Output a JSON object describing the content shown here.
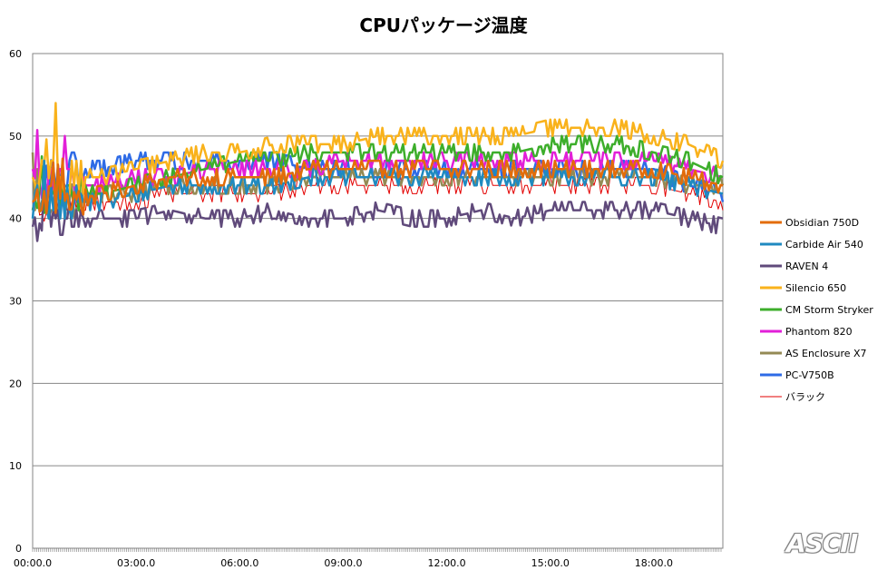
{
  "chart_data": {
    "type": "line",
    "title": "CPUパッケージ温度",
    "xlabel": "",
    "ylabel": "",
    "ylim": [
      0,
      60
    ],
    "yticks": [
      0,
      10,
      20,
      30,
      40,
      50,
      60
    ],
    "xlim_seconds": [
      0,
      1200
    ],
    "xticks": [
      "00:00.0",
      "03:00.0",
      "06:00.0",
      "09:00.0",
      "12:00.0",
      "15:00.0",
      "18:00.0"
    ],
    "grid": "horizontal",
    "legend_position": "right",
    "series": [
      {
        "name": "Obsidian 750D",
        "color": "#e36c09",
        "time_seconds": [
          0,
          30,
          60,
          120,
          180,
          240,
          300,
          360,
          420,
          480,
          540,
          600,
          660,
          720,
          780,
          840,
          900,
          960,
          1020,
          1080,
          1140,
          1200
        ],
        "values": [
          41,
          43,
          42,
          43,
          44,
          45,
          45,
          45,
          45,
          46,
          46,
          46,
          46,
          46,
          46,
          46,
          46,
          46,
          46,
          46,
          45,
          44
        ]
      },
      {
        "name": "Carbide Air 540",
        "color": "#1f8ac0",
        "time_seconds": [
          0,
          30,
          60,
          120,
          180,
          240,
          300,
          360,
          420,
          480,
          540,
          600,
          660,
          720,
          780,
          840,
          900,
          960,
          1020,
          1080,
          1140,
          1200
        ],
        "values": [
          42,
          42,
          42,
          42,
          43,
          44,
          44,
          44,
          44,
          45,
          45,
          45,
          45,
          45,
          45,
          45,
          45,
          45,
          45,
          45,
          44,
          43
        ]
      },
      {
        "name": "RAVEN 4",
        "color": "#604a7b",
        "time_seconds": [
          0,
          30,
          60,
          120,
          180,
          240,
          300,
          360,
          420,
          480,
          540,
          600,
          660,
          720,
          780,
          840,
          900,
          960,
          1020,
          1080,
          1140,
          1200
        ],
        "values": [
          39,
          40,
          40,
          40,
          40,
          41,
          40,
          40,
          41,
          40,
          40,
          41,
          40,
          40,
          41,
          40,
          41,
          41,
          41,
          41,
          40,
          39
        ]
      },
      {
        "name": "Silencio 650",
        "color": "#f9b21b",
        "time_seconds": [
          0,
          30,
          60,
          120,
          180,
          240,
          300,
          360,
          420,
          480,
          540,
          600,
          660,
          720,
          780,
          840,
          900,
          960,
          1020,
          1080,
          1140,
          1200
        ],
        "values": [
          43,
          45,
          45,
          45,
          46,
          47,
          48,
          48,
          49,
          49,
          49,
          50,
          50,
          50,
          50,
          50,
          51,
          51,
          51,
          50,
          49,
          47
        ]
      },
      {
        "name": "CM Storm Stryker",
        "color": "#3dae2b",
        "time_seconds": [
          0,
          30,
          60,
          120,
          180,
          240,
          300,
          360,
          420,
          480,
          540,
          600,
          660,
          720,
          780,
          840,
          900,
          960,
          1020,
          1080,
          1140,
          1200
        ],
        "values": [
          42,
          43,
          43,
          43,
          44,
          45,
          46,
          47,
          47,
          48,
          48,
          48,
          48,
          48,
          48,
          48,
          49,
          49,
          49,
          48,
          47,
          45
        ]
      },
      {
        "name": "Phantom 820",
        "color": "#e21fd8",
        "time_seconds": [
          0,
          30,
          60,
          120,
          180,
          240,
          300,
          360,
          420,
          480,
          540,
          600,
          660,
          720,
          780,
          840,
          900,
          960,
          1020,
          1080,
          1140,
          1200
        ],
        "values": [
          45,
          44,
          44,
          44,
          45,
          45,
          46,
          46,
          46,
          46,
          47,
          47,
          47,
          47,
          47,
          47,
          47,
          47,
          47,
          47,
          46,
          45
        ]
      },
      {
        "name": "AS Enclosure X7",
        "color": "#948a54",
        "time_seconds": [
          0,
          30,
          60,
          120,
          180,
          240,
          300,
          360,
          420,
          480,
          540,
          600,
          660,
          720,
          780,
          840,
          900,
          960,
          1020,
          1080,
          1140,
          1200
        ],
        "values": [
          42,
          42,
          42,
          43,
          43,
          44,
          44,
          44,
          44,
          45,
          45,
          45,
          45,
          45,
          45,
          45,
          45,
          45,
          45,
          45,
          44,
          44
        ]
      },
      {
        "name": "PC-V750B",
        "color": "#2e6be6",
        "time_seconds": [
          0,
          30,
          60,
          120,
          180,
          240,
          300,
          360,
          420,
          480,
          540,
          600,
          660,
          720,
          780,
          840,
          900,
          960,
          1020,
          1080,
          1140,
          1200
        ],
        "values": [
          42,
          45,
          46,
          46,
          47,
          47,
          47,
          47,
          47,
          46,
          46,
          46,
          46,
          46,
          46,
          46,
          46,
          46,
          46,
          46,
          44,
          43
        ]
      },
      {
        "name": "バラック",
        "color": "#e30000",
        "time_seconds": [
          0,
          30,
          60,
          120,
          180,
          240,
          300,
          360,
          420,
          480,
          540,
          600,
          660,
          720,
          780,
          840,
          900,
          960,
          1020,
          1080,
          1140,
          1200
        ],
        "values": [
          41,
          42,
          42,
          42,
          42,
          43,
          43,
          43,
          43,
          44,
          44,
          44,
          44,
          44,
          44,
          44,
          44,
          44,
          44,
          44,
          43,
          42
        ]
      }
    ]
  },
  "watermark": {
    "text": "ASCII"
  }
}
